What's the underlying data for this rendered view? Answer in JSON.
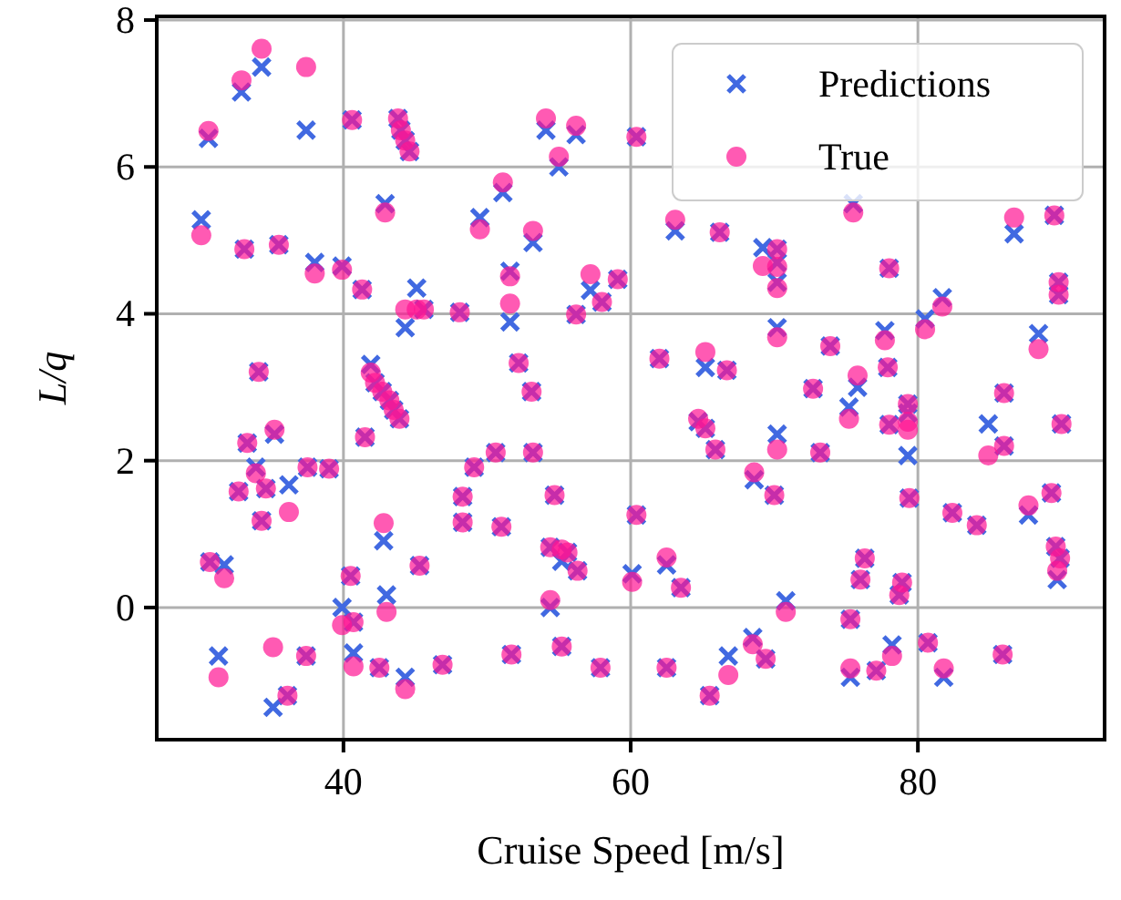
{
  "chart_data": {
    "type": "scatter",
    "xlabel": "Cruise Speed [m/s]",
    "ylabel": "L/q",
    "x": [
      30.6,
      32.9,
      34.3,
      37.4,
      40.6,
      43.8,
      44.0,
      44.3,
      44.6,
      30.1,
      33.1,
      35.5,
      38.0,
      39.9,
      41.3,
      42.9,
      45.1,
      44.3,
      45.6,
      48.1,
      34.1,
      41.9,
      42.2,
      42.7,
      43.2,
      43.5,
      43.9,
      33.3,
      35.2,
      33.9,
      32.7,
      34.6,
      36.2,
      37.5,
      39.0,
      34.3,
      41.5,
      42.8,
      45.3,
      30.7,
      31.7,
      40.5,
      39.9,
      40.7,
      43.0,
      31.3,
      35.1,
      36.1,
      37.4,
      40.7,
      42.5,
      44.3,
      46.9,
      48.3,
      48.3,
      49.1,
      54.1,
      56.2,
      60.4,
      55.0,
      51.1,
      49.5,
      53.2,
      51.6,
      51.6,
      57.2,
      58.0,
      59.1,
      56.2,
      52.2,
      62.0,
      65.2,
      66.7,
      63.1,
      66.2,
      69.2,
      70.2,
      70.2,
      70.2,
      75.5,
      86.7,
      89.5,
      78.0,
      89.8,
      89.8,
      81.7,
      80.5,
      88.4,
      70.2,
      73.9,
      77.7,
      77.9,
      75.8,
      53.1,
      50.6,
      53.2,
      51.0,
      54.7,
      54.4,
      55.2,
      55.6,
      56.3,
      54.4,
      60.4,
      60.1,
      62.5,
      63.5,
      51.7,
      55.2,
      57.9,
      62.5,
      65.5,
      66.8,
      68.5,
      69.4,
      64.7,
      65.2,
      65.9,
      68.6,
      70.0,
      70.2,
      72.7,
      75.2,
      79.3,
      79.3,
      79.3,
      78.0,
      73.2,
      86.0,
      84.9,
      86.0,
      90.0,
      79.4,
      82.4,
      84.1,
      87.7,
      89.3,
      89.6,
      89.9,
      89.7,
      76.3,
      76.0,
      78.9,
      78.7,
      70.8,
      75.3,
      75.3,
      77.1,
      78.2,
      80.7,
      81.8,
      85.9
    ],
    "series": [
      {
        "name": "Predictions",
        "color": "#4169e1",
        "marker": "cross",
        "values": [
          6.39,
          7.02,
          7.36,
          6.5,
          6.64,
          6.66,
          6.5,
          6.36,
          6.21,
          5.28,
          4.88,
          4.94,
          4.7,
          4.65,
          4.33,
          5.5,
          4.35,
          3.81,
          4.06,
          4.02,
          3.21,
          3.31,
          3.06,
          2.94,
          2.82,
          2.69,
          2.57,
          2.24,
          2.36,
          1.91,
          1.58,
          1.62,
          1.67,
          1.91,
          1.89,
          1.18,
          2.32,
          0.91,
          0.57,
          0.62,
          0.58,
          0.43,
          0.0,
          -0.2,
          0.17,
          -0.66,
          -1.36,
          -1.2,
          -0.66,
          -0.62,
          -0.82,
          -0.95,
          -0.78,
          1.51,
          1.16,
          1.91,
          6.5,
          6.44,
          6.41,
          6.0,
          5.65,
          5.31,
          4.97,
          4.58,
          3.89,
          4.32,
          4.16,
          4.47,
          3.99,
          3.33,
          3.39,
          3.27,
          3.23,
          5.13,
          5.11,
          4.9,
          4.88,
          4.7,
          4.43,
          5.5,
          5.09,
          5.34,
          4.62,
          4.43,
          4.26,
          4.22,
          3.93,
          3.73,
          3.81,
          3.56,
          3.77,
          3.27,
          3.0,
          2.94,
          2.11,
          2.11,
          1.1,
          1.53,
          0.82,
          0.63,
          0.75,
          0.5,
          0.0,
          1.26,
          0.46,
          0.58,
          0.27,
          -0.64,
          -0.53,
          -0.82,
          -0.82,
          -1.2,
          -0.66,
          -0.41,
          -0.7,
          2.53,
          2.44,
          2.15,
          1.74,
          1.53,
          2.36,
          2.98,
          2.73,
          2.77,
          2.65,
          2.07,
          2.49,
          2.11,
          2.92,
          2.5,
          2.2,
          2.5,
          1.49,
          1.29,
          1.12,
          1.26,
          1.56,
          0.83,
          0.67,
          0.38,
          0.67,
          0.38,
          0.34,
          0.17,
          0.09,
          -0.16,
          -0.95,
          -0.86,
          -0.51,
          -0.48,
          -0.95,
          -0.64
        ]
      },
      {
        "name": "True",
        "color": "#ff1493",
        "marker": "circle",
        "values": [
          6.49,
          7.18,
          7.61,
          7.36,
          6.64,
          6.66,
          6.5,
          6.36,
          6.21,
          5.07,
          4.88,
          4.94,
          4.55,
          4.6,
          4.33,
          5.38,
          4.06,
          4.06,
          4.06,
          4.02,
          3.21,
          3.2,
          3.06,
          2.94,
          2.82,
          2.69,
          2.57,
          2.24,
          2.42,
          1.83,
          1.58,
          1.62,
          1.3,
          1.91,
          1.89,
          1.18,
          2.32,
          1.15,
          0.57,
          0.62,
          0.4,
          0.43,
          -0.24,
          -0.2,
          -0.06,
          -0.95,
          -0.54,
          -1.2,
          -0.66,
          -0.8,
          -0.82,
          -1.11,
          -0.78,
          1.51,
          1.16,
          1.91,
          6.66,
          6.56,
          6.41,
          6.14,
          5.79,
          5.15,
          5.13,
          4.51,
          4.14,
          4.54,
          4.16,
          4.47,
          3.99,
          3.33,
          3.39,
          3.48,
          3.23,
          5.28,
          5.11,
          4.65,
          4.88,
          4.64,
          4.35,
          5.38,
          5.31,
          5.34,
          4.62,
          4.43,
          4.26,
          4.1,
          3.79,
          3.52,
          3.68,
          3.56,
          3.64,
          3.27,
          3.16,
          2.94,
          2.11,
          2.11,
          1.1,
          1.53,
          0.82,
          0.79,
          0.75,
          0.5,
          0.1,
          1.26,
          0.35,
          0.68,
          0.27,
          -0.64,
          -0.53,
          -0.82,
          -0.82,
          -1.2,
          -0.92,
          -0.5,
          -0.7,
          2.57,
          2.44,
          2.15,
          1.84,
          1.53,
          2.15,
          2.98,
          2.57,
          2.77,
          2.53,
          2.42,
          2.49,
          2.11,
          2.92,
          2.07,
          2.2,
          2.5,
          1.49,
          1.29,
          1.12,
          1.39,
          1.56,
          0.83,
          0.67,
          0.5,
          0.67,
          0.38,
          0.34,
          0.17,
          -0.06,
          -0.16,
          -0.83,
          -0.86,
          -0.66,
          -0.48,
          -0.83,
          -0.64
        ]
      }
    ],
    "xlim": [
      27,
      93
    ],
    "ylim": [
      -1.8,
      8.05
    ],
    "xticks": [
      40,
      60,
      80
    ],
    "yticks": [
      0,
      2,
      4,
      6,
      8
    ],
    "grid": true,
    "legend": "top right"
  }
}
